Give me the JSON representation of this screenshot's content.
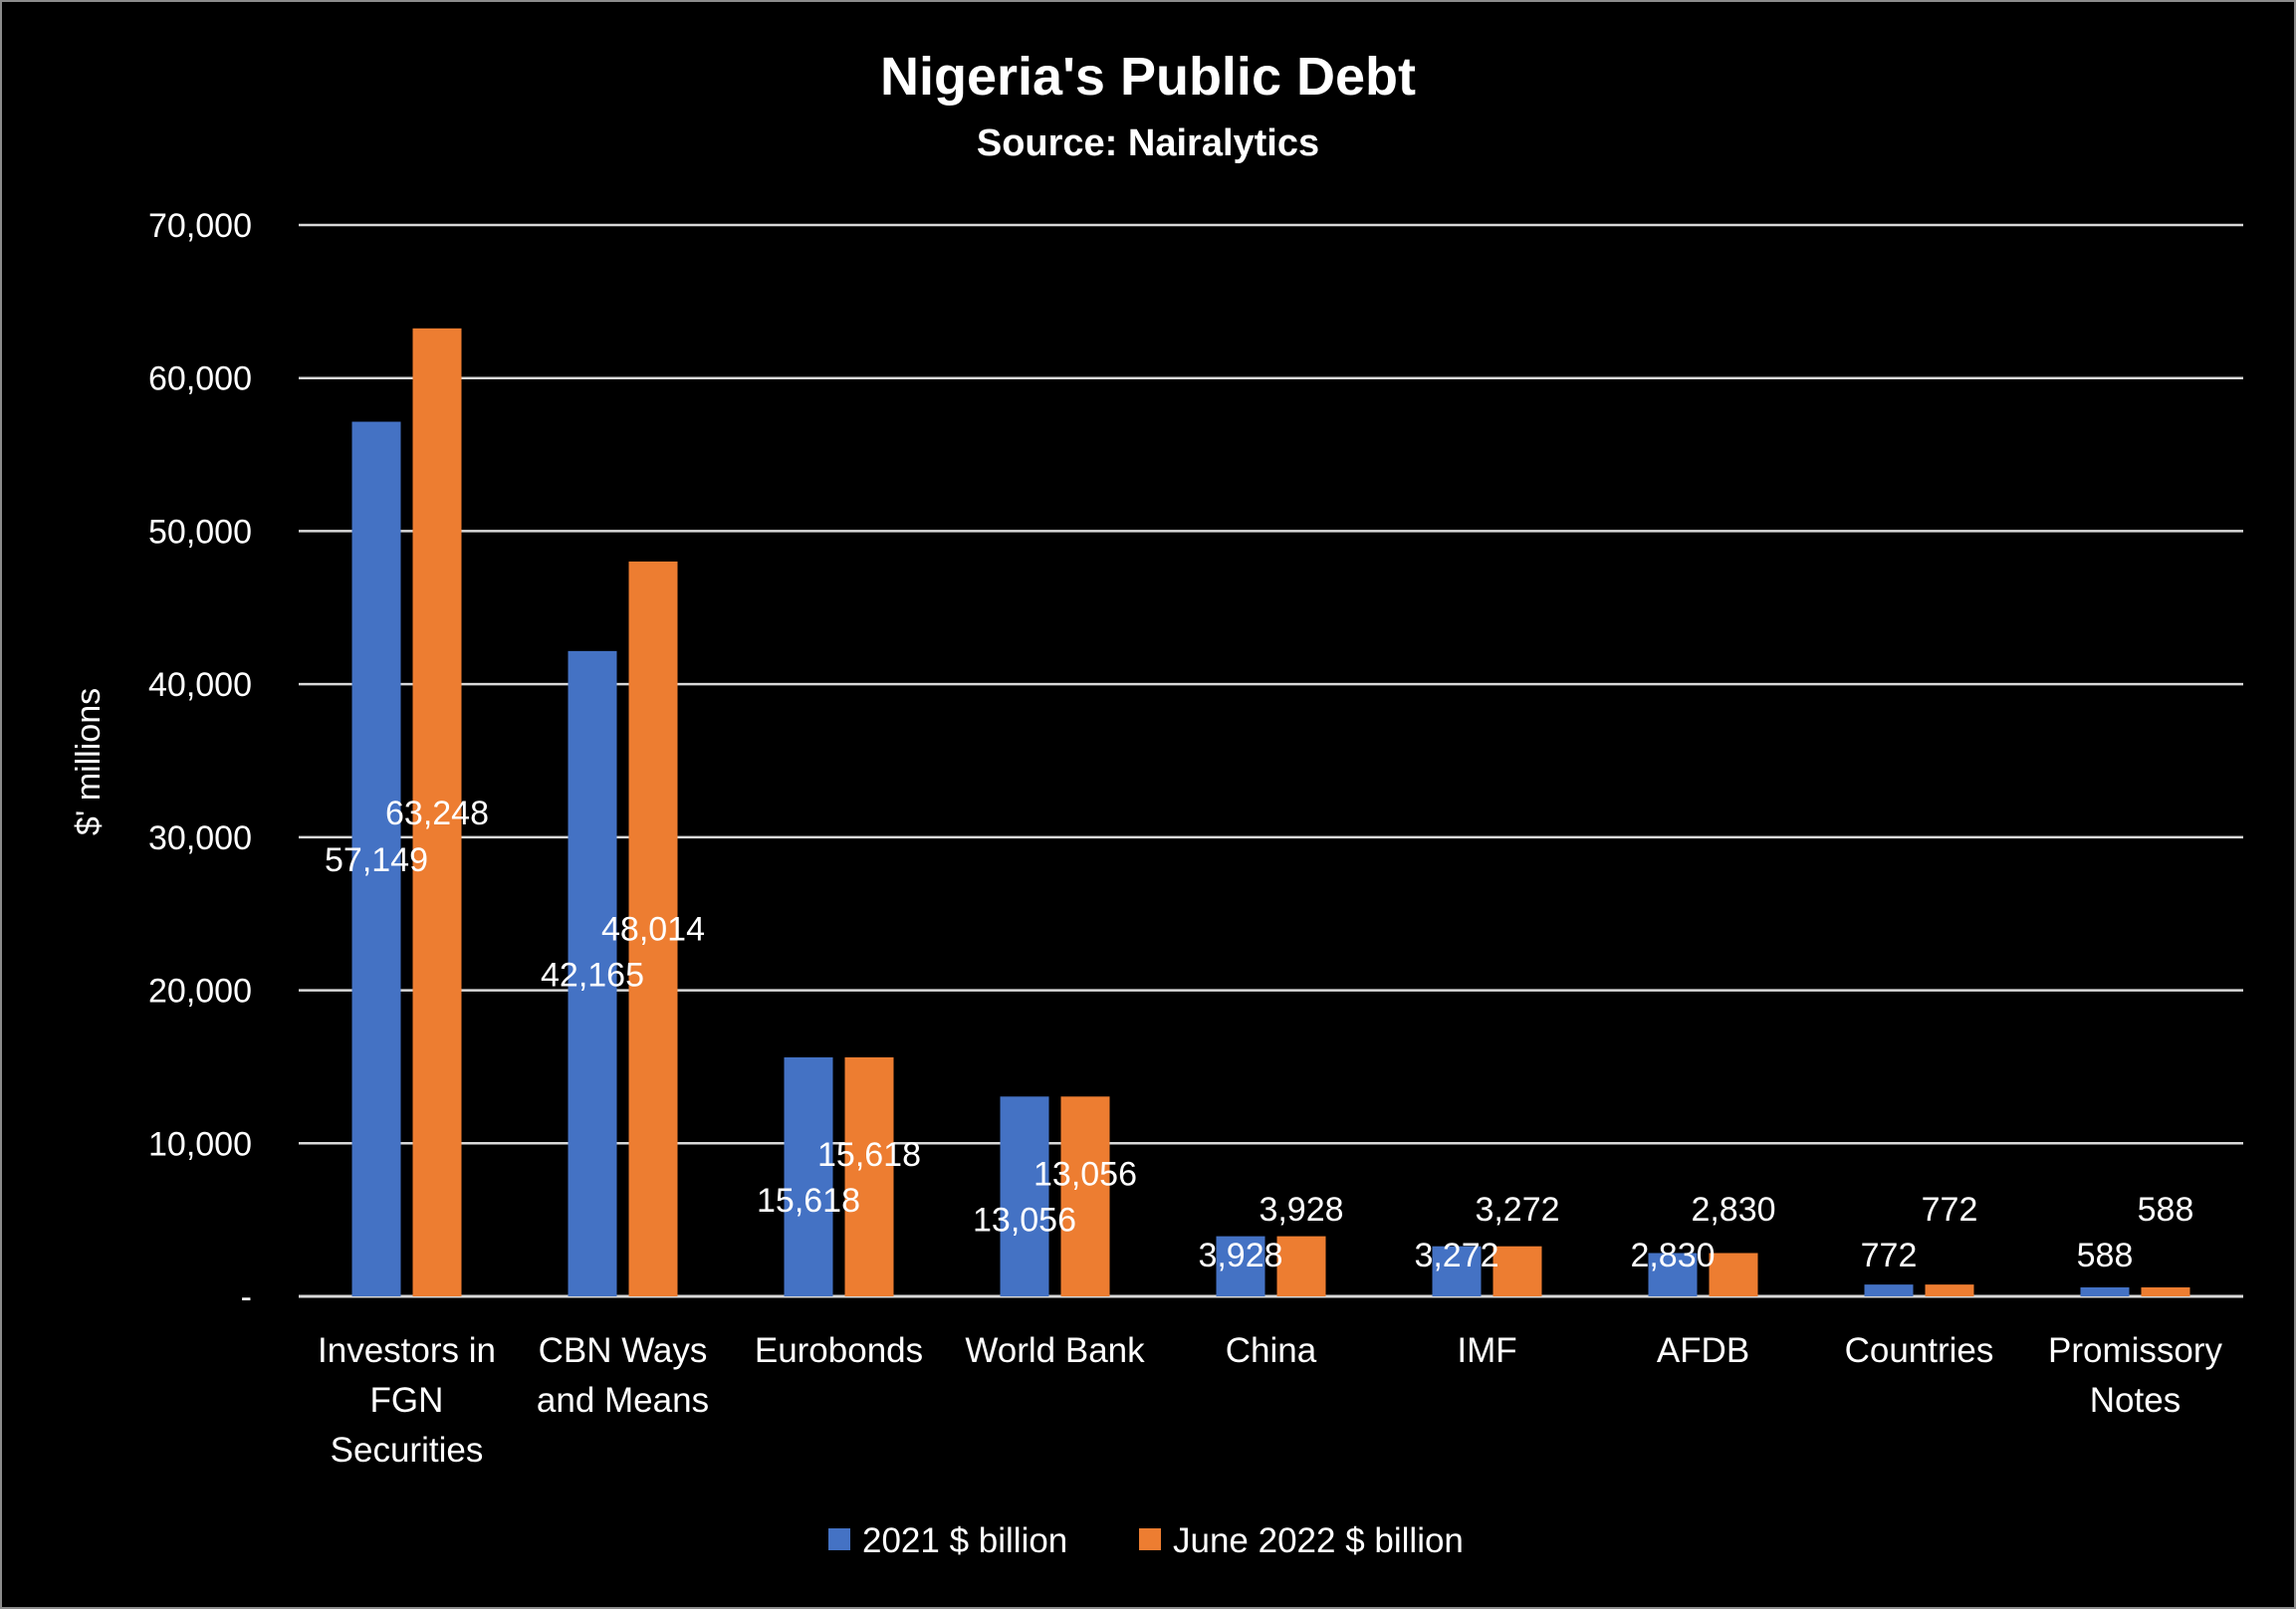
{
  "chart_data": {
    "type": "bar",
    "title": "Nigeria's Public Debt",
    "subtitle": "Source: Nairalytics",
    "xlabel": "",
    "ylabel": "$' millions",
    "ylim": [
      0,
      70000
    ],
    "yticks": [
      0,
      10000,
      20000,
      30000,
      40000,
      50000,
      60000,
      70000
    ],
    "ytick_labels": [
      "-",
      "10,000",
      "20,000",
      "30,000",
      "40,000",
      "50,000",
      "60,000",
      "70,000"
    ],
    "grid": true,
    "legend_position": "bottom",
    "categories": [
      [
        "Investors in",
        "FGN",
        "Securities"
      ],
      [
        "CBN Ways",
        "and Means"
      ],
      [
        "Eurobonds"
      ],
      [
        "World Bank"
      ],
      [
        "China"
      ],
      [
        "IMF"
      ],
      [
        "AFDB"
      ],
      [
        "Countries"
      ],
      [
        "Promissory",
        "Notes"
      ]
    ],
    "series": [
      {
        "name": "2021 $ billion",
        "color": "#4472C4",
        "values": [
          57149,
          42165,
          15618,
          13056,
          3928,
          3272,
          2830,
          772,
          588
        ],
        "labels": [
          "57,149",
          "42,165",
          "15,618",
          "13,056",
          "3,928",
          "3,272",
          "2,830",
          "772",
          "588"
        ]
      },
      {
        "name": "June 2022 $ billion",
        "color": "#ED7D31",
        "values": [
          63248,
          48014,
          15618,
          13056,
          3928,
          3272,
          2830,
          772,
          588
        ],
        "labels": [
          "63,248",
          "48,014",
          "15,618",
          "13,056",
          "3,928",
          "3,272",
          "2,830",
          "772",
          "588"
        ]
      }
    ]
  }
}
